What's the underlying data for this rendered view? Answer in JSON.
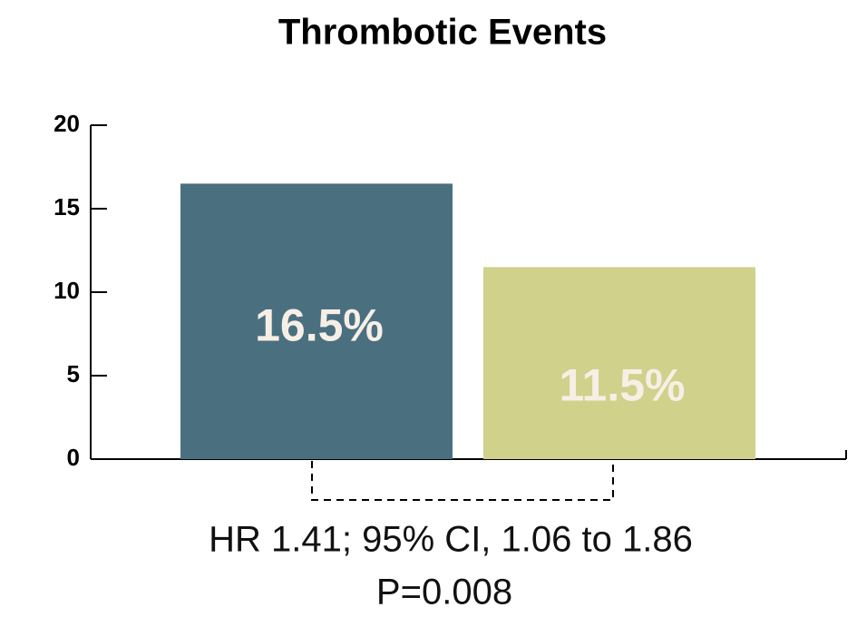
{
  "chart_data": {
    "type": "bar",
    "title": "Thrombotic Events",
    "categories": [
      null,
      null
    ],
    "values": [
      16.5,
      11.5
    ],
    "value_labels": [
      "16.5%",
      "11.5%"
    ],
    "colors": [
      "#4a7080",
      "#d0d18b"
    ],
    "ylim": [
      0,
      20
    ],
    "yticks": [
      0,
      5,
      10,
      15,
      20
    ],
    "grid": false,
    "annotations": [
      "HR 1.41; 95% CI, 1.06 to 1.86",
      "P=0.008"
    ]
  }
}
